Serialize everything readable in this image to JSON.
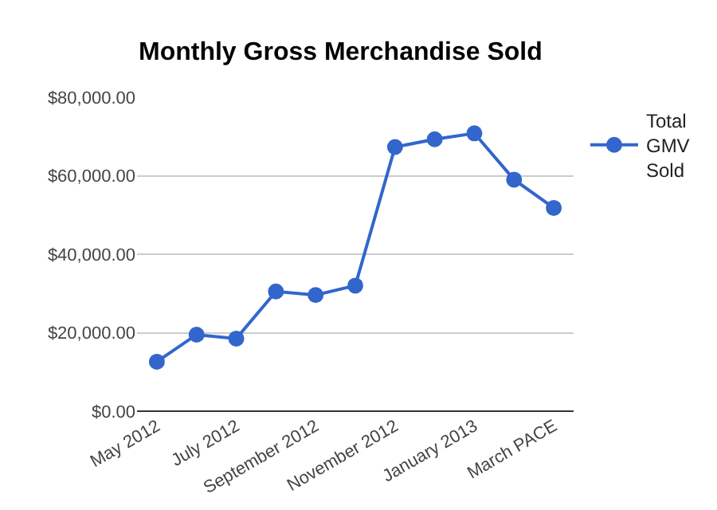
{
  "chart_data": {
    "type": "line",
    "title": "Monthly Gross Merchandise Sold",
    "categories": [
      "May 2012",
      null,
      "July 2012",
      null,
      "September 2012",
      null,
      "November 2012",
      null,
      "January 2013",
      null,
      "March PACE"
    ],
    "series": [
      {
        "name": "Total GMV Sold",
        "color": "#3366cc",
        "values": [
          12600,
          19500,
          18500,
          30500,
          29600,
          32000,
          67300,
          69300,
          70800,
          59000,
          51800
        ]
      }
    ],
    "ylim": [
      0,
      80000
    ],
    "yticks": [
      {
        "value": 0,
        "label": "$0.00"
      },
      {
        "value": 20000,
        "label": "$20,000.00"
      },
      {
        "value": 40000,
        "label": "$40,000.00"
      },
      {
        "value": 60000,
        "label": "$60,000.00"
      },
      {
        "value": 80000,
        "label": "$80,000.00"
      }
    ],
    "grid": "y",
    "legend": "right",
    "marker": "circle",
    "line_style": "solid"
  }
}
